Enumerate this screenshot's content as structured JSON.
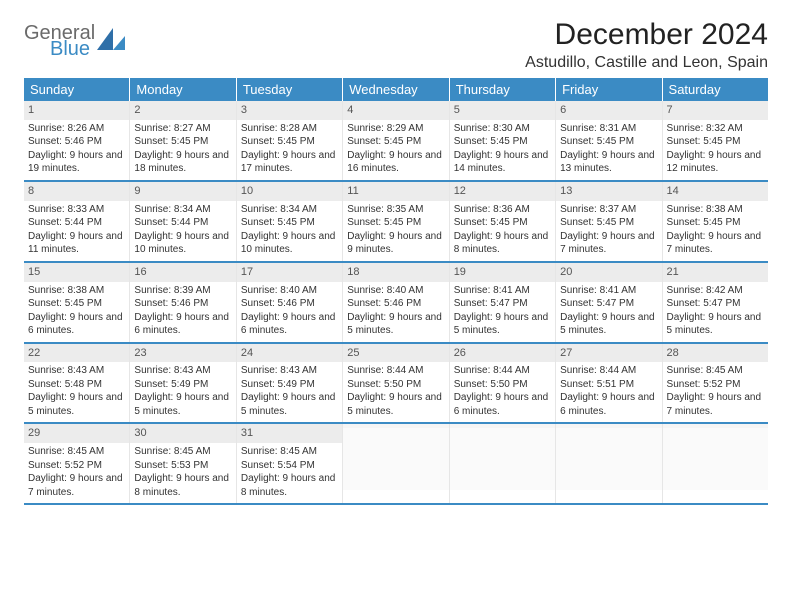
{
  "brand": {
    "name_top": "General",
    "name_bottom": "Blue",
    "accent": "#3b8bc4",
    "grey": "#6a6a6a"
  },
  "title": "December 2024",
  "location": "Astudillo, Castille and Leon, Spain",
  "colors": {
    "header_bg": "#3b8bc4",
    "header_fg": "#ffffff",
    "daynum_bg": "#ececec",
    "border": "#3b8bc4"
  },
  "day_names": [
    "Sunday",
    "Monday",
    "Tuesday",
    "Wednesday",
    "Thursday",
    "Friday",
    "Saturday"
  ],
  "weeks": [
    [
      {
        "n": "1",
        "sr": "8:26 AM",
        "ss": "5:46 PM",
        "dl": "9 hours and 19 minutes."
      },
      {
        "n": "2",
        "sr": "8:27 AM",
        "ss": "5:45 PM",
        "dl": "9 hours and 18 minutes."
      },
      {
        "n": "3",
        "sr": "8:28 AM",
        "ss": "5:45 PM",
        "dl": "9 hours and 17 minutes."
      },
      {
        "n": "4",
        "sr": "8:29 AM",
        "ss": "5:45 PM",
        "dl": "9 hours and 16 minutes."
      },
      {
        "n": "5",
        "sr": "8:30 AM",
        "ss": "5:45 PM",
        "dl": "9 hours and 14 minutes."
      },
      {
        "n": "6",
        "sr": "8:31 AM",
        "ss": "5:45 PM",
        "dl": "9 hours and 13 minutes."
      },
      {
        "n": "7",
        "sr": "8:32 AM",
        "ss": "5:45 PM",
        "dl": "9 hours and 12 minutes."
      }
    ],
    [
      {
        "n": "8",
        "sr": "8:33 AM",
        "ss": "5:44 PM",
        "dl": "9 hours and 11 minutes."
      },
      {
        "n": "9",
        "sr": "8:34 AM",
        "ss": "5:44 PM",
        "dl": "9 hours and 10 minutes."
      },
      {
        "n": "10",
        "sr": "8:34 AM",
        "ss": "5:45 PM",
        "dl": "9 hours and 10 minutes."
      },
      {
        "n": "11",
        "sr": "8:35 AM",
        "ss": "5:45 PM",
        "dl": "9 hours and 9 minutes."
      },
      {
        "n": "12",
        "sr": "8:36 AM",
        "ss": "5:45 PM",
        "dl": "9 hours and 8 minutes."
      },
      {
        "n": "13",
        "sr": "8:37 AM",
        "ss": "5:45 PM",
        "dl": "9 hours and 7 minutes."
      },
      {
        "n": "14",
        "sr": "8:38 AM",
        "ss": "5:45 PM",
        "dl": "9 hours and 7 minutes."
      }
    ],
    [
      {
        "n": "15",
        "sr": "8:38 AM",
        "ss": "5:45 PM",
        "dl": "9 hours and 6 minutes."
      },
      {
        "n": "16",
        "sr": "8:39 AM",
        "ss": "5:46 PM",
        "dl": "9 hours and 6 minutes."
      },
      {
        "n": "17",
        "sr": "8:40 AM",
        "ss": "5:46 PM",
        "dl": "9 hours and 6 minutes."
      },
      {
        "n": "18",
        "sr": "8:40 AM",
        "ss": "5:46 PM",
        "dl": "9 hours and 5 minutes."
      },
      {
        "n": "19",
        "sr": "8:41 AM",
        "ss": "5:47 PM",
        "dl": "9 hours and 5 minutes."
      },
      {
        "n": "20",
        "sr": "8:41 AM",
        "ss": "5:47 PM",
        "dl": "9 hours and 5 minutes."
      },
      {
        "n": "21",
        "sr": "8:42 AM",
        "ss": "5:47 PM",
        "dl": "9 hours and 5 minutes."
      }
    ],
    [
      {
        "n": "22",
        "sr": "8:43 AM",
        "ss": "5:48 PM",
        "dl": "9 hours and 5 minutes."
      },
      {
        "n": "23",
        "sr": "8:43 AM",
        "ss": "5:49 PM",
        "dl": "9 hours and 5 minutes."
      },
      {
        "n": "24",
        "sr": "8:43 AM",
        "ss": "5:49 PM",
        "dl": "9 hours and 5 minutes."
      },
      {
        "n": "25",
        "sr": "8:44 AM",
        "ss": "5:50 PM",
        "dl": "9 hours and 5 minutes."
      },
      {
        "n": "26",
        "sr": "8:44 AM",
        "ss": "5:50 PM",
        "dl": "9 hours and 6 minutes."
      },
      {
        "n": "27",
        "sr": "8:44 AM",
        "ss": "5:51 PM",
        "dl": "9 hours and 6 minutes."
      },
      {
        "n": "28",
        "sr": "8:45 AM",
        "ss": "5:52 PM",
        "dl": "9 hours and 7 minutes."
      }
    ],
    [
      {
        "n": "29",
        "sr": "8:45 AM",
        "ss": "5:52 PM",
        "dl": "9 hours and 7 minutes."
      },
      {
        "n": "30",
        "sr": "8:45 AM",
        "ss": "5:53 PM",
        "dl": "9 hours and 8 minutes."
      },
      {
        "n": "31",
        "sr": "8:45 AM",
        "ss": "5:54 PM",
        "dl": "9 hours and 8 minutes."
      },
      null,
      null,
      null,
      null
    ]
  ],
  "labels": {
    "sunrise": "Sunrise:",
    "sunset": "Sunset:",
    "daylight": "Daylight:"
  }
}
